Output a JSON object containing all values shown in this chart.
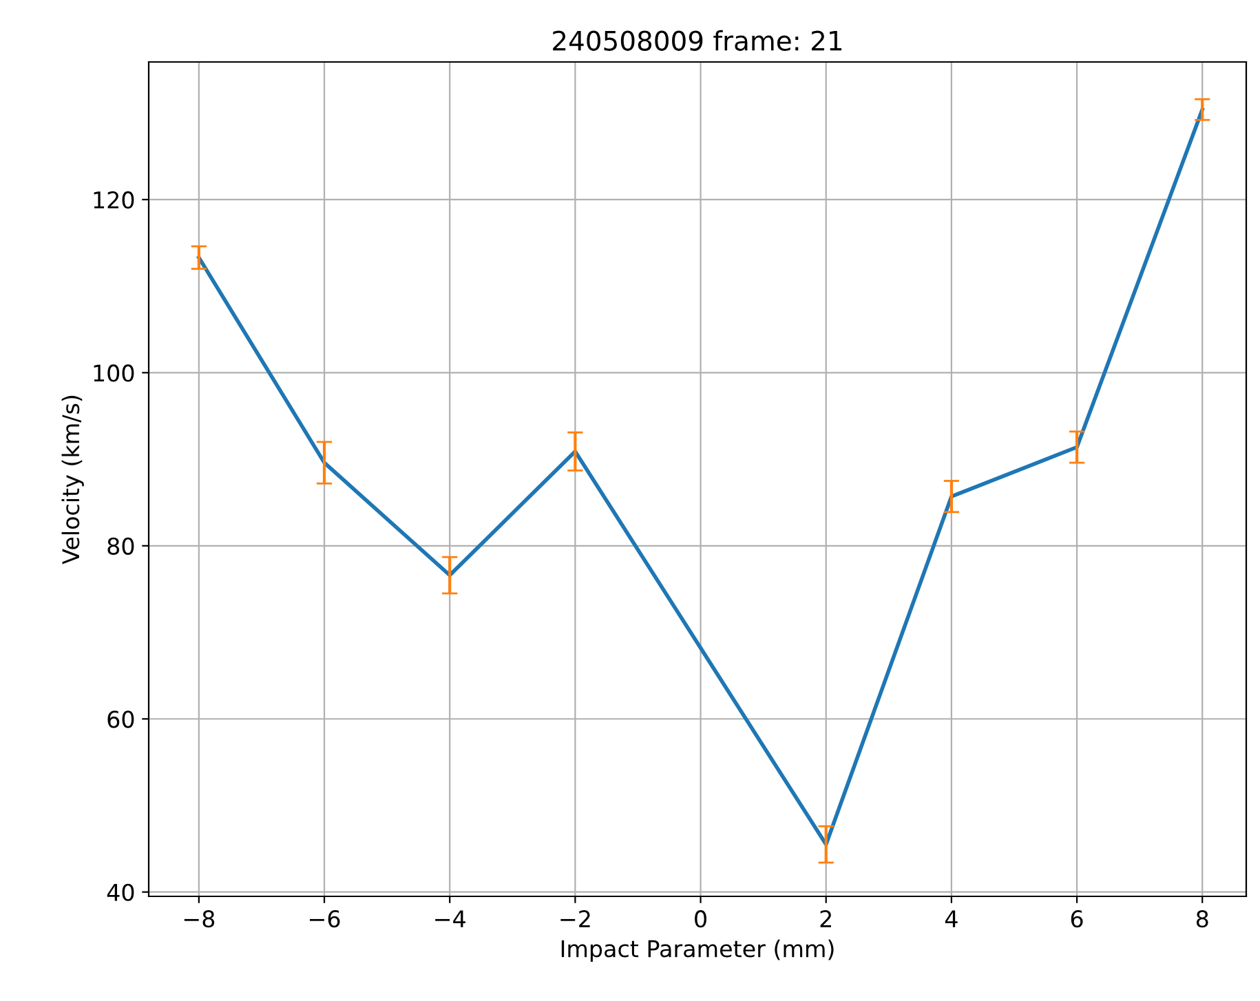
{
  "chart_data": {
    "type": "line",
    "title": "240508009 frame: 21",
    "xlabel": "Impact Parameter (mm)",
    "ylabel": "Velocity (km/s)",
    "x": [
      -8,
      -6,
      -4,
      -2,
      2,
      4,
      6,
      8
    ],
    "series": [
      {
        "color": "#1f77b4",
        "values": [
          113.3,
          89.6,
          76.6,
          90.9,
          45.5,
          85.7,
          91.4,
          130.4
        ],
        "errors": [
          1.3,
          2.4,
          2.1,
          2.2,
          2.1,
          1.8,
          1.8,
          1.2
        ]
      }
    ],
    "xlim": [
      -8.8,
      8.7
    ],
    "ylim": [
      39.5,
      135.9
    ],
    "xticks": [
      {
        "value": -8,
        "label": "−8"
      },
      {
        "value": -6,
        "label": "−6"
      },
      {
        "value": -4,
        "label": "−4"
      },
      {
        "value": -2,
        "label": "−2"
      },
      0,
      2,
      4,
      6,
      8
    ],
    "yticks": [
      40,
      60,
      80,
      100,
      120
    ],
    "grid": true,
    "marker": "none",
    "line_style": "solid"
  }
}
